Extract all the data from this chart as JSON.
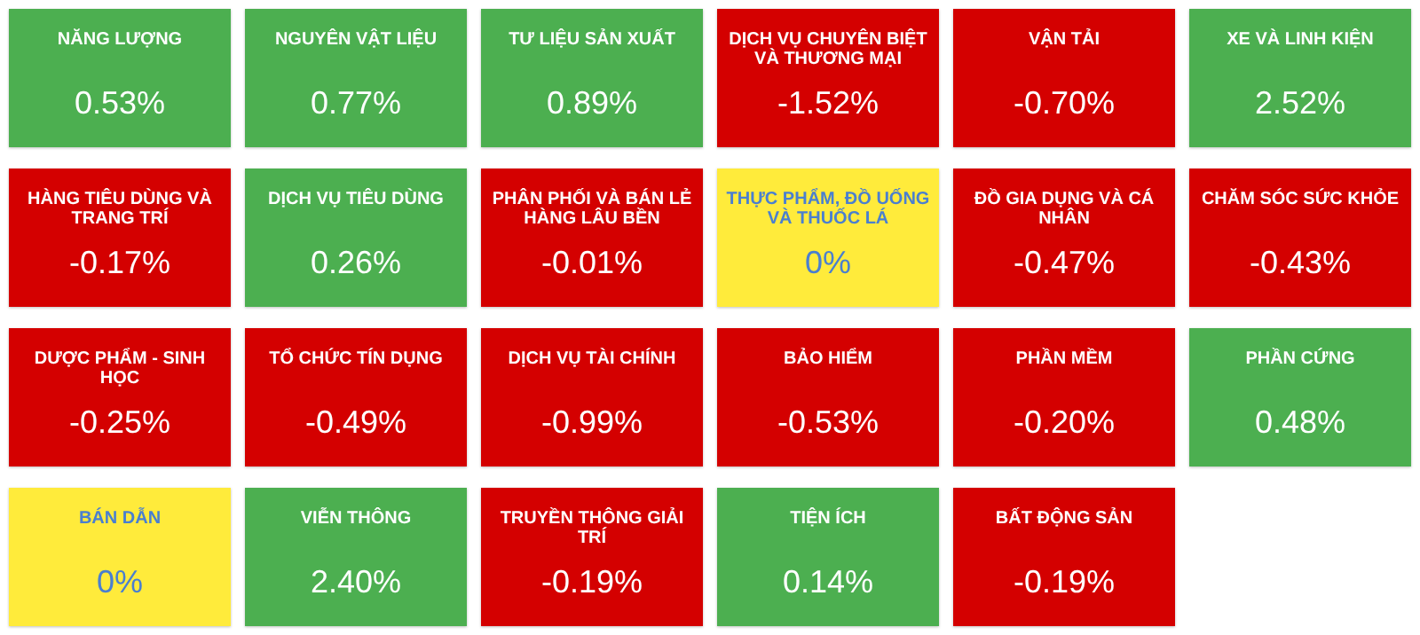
{
  "chart_data": {
    "type": "other",
    "categories": [
      "NĂNG LƯỢNG",
      "NGUYÊN VẬT LIỆU",
      "TƯ LIỆU SẢN XUẤT",
      "DỊCH VỤ CHUYÊN BIỆT VÀ THƯƠNG MẠI",
      "VẬN TẢI",
      "XE VÀ LINH KIỆN",
      "HÀNG TIÊU DÙNG VÀ TRANG TRÍ",
      "DỊCH VỤ TIÊU DÙNG",
      "PHÂN PHỐI VÀ BÁN LẺ HÀNG LÂU BỀN",
      "THỰC PHẨM, ĐỒ UỐNG VÀ THUỐC LÁ",
      "ĐỒ GIA DỤNG VÀ CÁ NHÂN",
      "CHĂM SÓC SỨC KHỎE",
      "DƯỢC PHẨM - SINH HỌC",
      "TỔ CHỨC TÍN DỤNG",
      "DỊCH VỤ TÀI CHÍNH",
      "BẢO HIỂM",
      "PHẦN MỀM",
      "PHẦN CỨNG",
      "BÁN DẪN",
      "VIỄN THÔNG",
      "TRUYỀN THÔNG GIẢI TRÍ",
      "TIỆN ÍCH",
      "BẤT ĐỘNG SẢN"
    ],
    "values": [
      0.53,
      0.77,
      0.89,
      -1.52,
      -0.7,
      2.52,
      -0.17,
      0.26,
      -0.01,
      0,
      -0.47,
      -0.43,
      -0.25,
      -0.49,
      -0.99,
      -0.53,
      -0.2,
      0.48,
      0,
      2.4,
      -0.19,
      0.14,
      -0.19
    ],
    "value_labels": [
      "0.53%",
      "0.77%",
      "0.89%",
      "-1.52%",
      "-0.70%",
      "2.52%",
      "-0.17%",
      "0.26%",
      "-0.01%",
      "0%",
      "-0.47%",
      "-0.43%",
      "-0.25%",
      "-0.49%",
      "-0.99%",
      "-0.53%",
      "-0.20%",
      "0.48%",
      "0%",
      "2.40%",
      "-0.19%",
      "0.14%",
      "-0.19%"
    ],
    "colors": [
      "#4caf50",
      "#4caf50",
      "#4caf50",
      "#d40000",
      "#d40000",
      "#4caf50",
      "#d40000",
      "#4caf50",
      "#d40000",
      "#ffeb3b",
      "#d40000",
      "#d40000",
      "#d40000",
      "#d40000",
      "#d40000",
      "#d40000",
      "#d40000",
      "#4caf50",
      "#ffeb3b",
      "#4caf50",
      "#d40000",
      "#4caf50",
      "#d40000"
    ]
  }
}
